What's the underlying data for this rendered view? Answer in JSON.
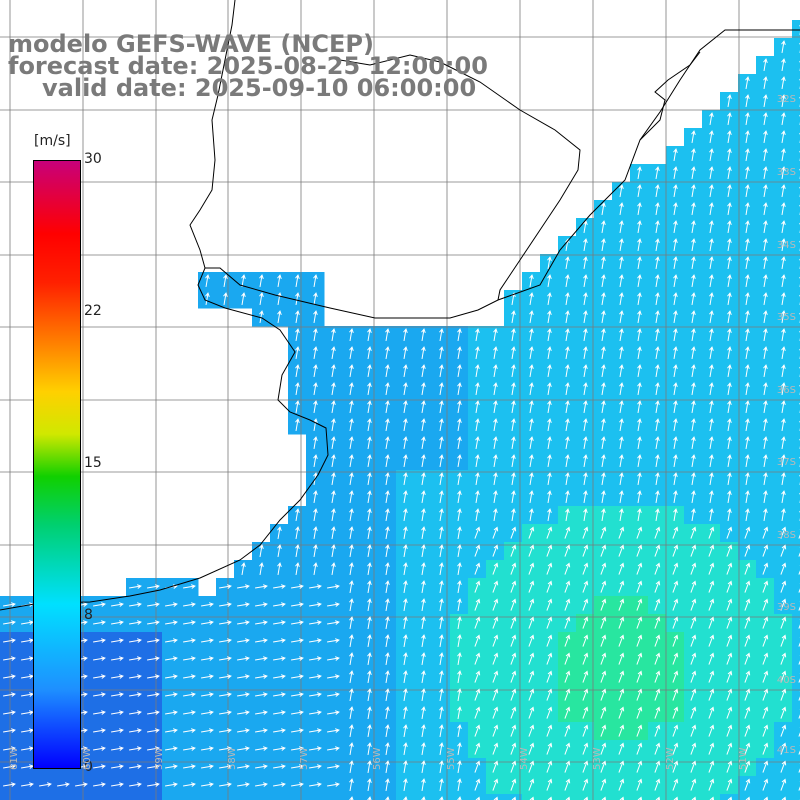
{
  "title": {
    "line1": "modelo GEFS-WAVE (NCEP)",
    "line2": "forecast date: 2025-08-25 12:00:00",
    "line3": "valid date: 2025-09-10 06:00:00"
  },
  "colorbar": {
    "unit": "[m/s]",
    "ticks": [
      "30",
      "22",
      "15",
      "8",
      "0"
    ],
    "min": 0,
    "max": 30
  },
  "grid_labels": {
    "latitudes": [
      "32S",
      "33S",
      "34S",
      "35S",
      "36S",
      "37S",
      "38S",
      "39S",
      "40S",
      "41S"
    ],
    "longitudes": [
      "61W",
      "60W",
      "59W",
      "58W",
      "57W",
      "56W",
      "55W",
      "54W",
      "53W",
      "52W",
      "51W"
    ]
  },
  "wind_field": {
    "general_direction": "toward north-northeast",
    "speed_range_m_s": [
      3,
      10
    ],
    "strongest_region": "southeast open ocean",
    "colors": {
      "low": "#1e6fe6",
      "mid": "#1aa8f0",
      "high": "#22e0d0",
      "max": "#28e6a0"
    }
  },
  "colors": {
    "land": "#ffffff",
    "coast": "#000000",
    "grid": "#7a7a7a",
    "arrows": "#ffffff",
    "title": "#7a7a7a"
  }
}
